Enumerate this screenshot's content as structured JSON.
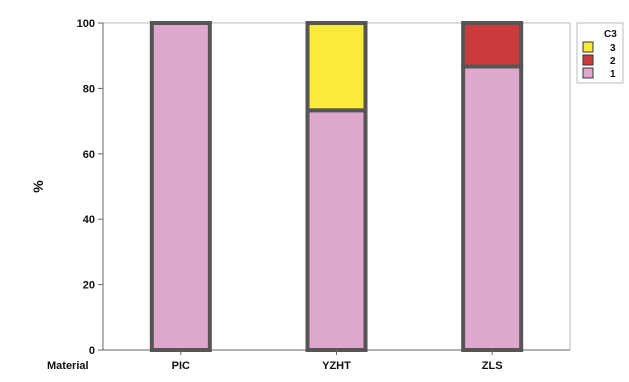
{
  "chart_data": {
    "type": "bar",
    "stacked": true,
    "categories": [
      "PIC",
      "YZHT",
      "ZLS"
    ],
    "series": [
      {
        "name": "1",
        "color": "#dea8cc",
        "values": [
          100,
          73.3,
          86.7
        ]
      },
      {
        "name": "2",
        "color": "#cc3b3b",
        "values": [
          0,
          0,
          13.3
        ]
      },
      {
        "name": "3",
        "color": "#fcea3b",
        "values": [
          0,
          26.7,
          0
        ]
      }
    ],
    "ylabel": "%",
    "xlabel": "Material",
    "ylim": [
      0,
      100
    ],
    "yticks": [
      0,
      20,
      40,
      60,
      80,
      100
    ],
    "grid": false,
    "legend": {
      "title": "C3",
      "placement": "top-right",
      "order": [
        "3",
        "2",
        "1"
      ]
    },
    "bar_edge_color": "#555555"
  }
}
